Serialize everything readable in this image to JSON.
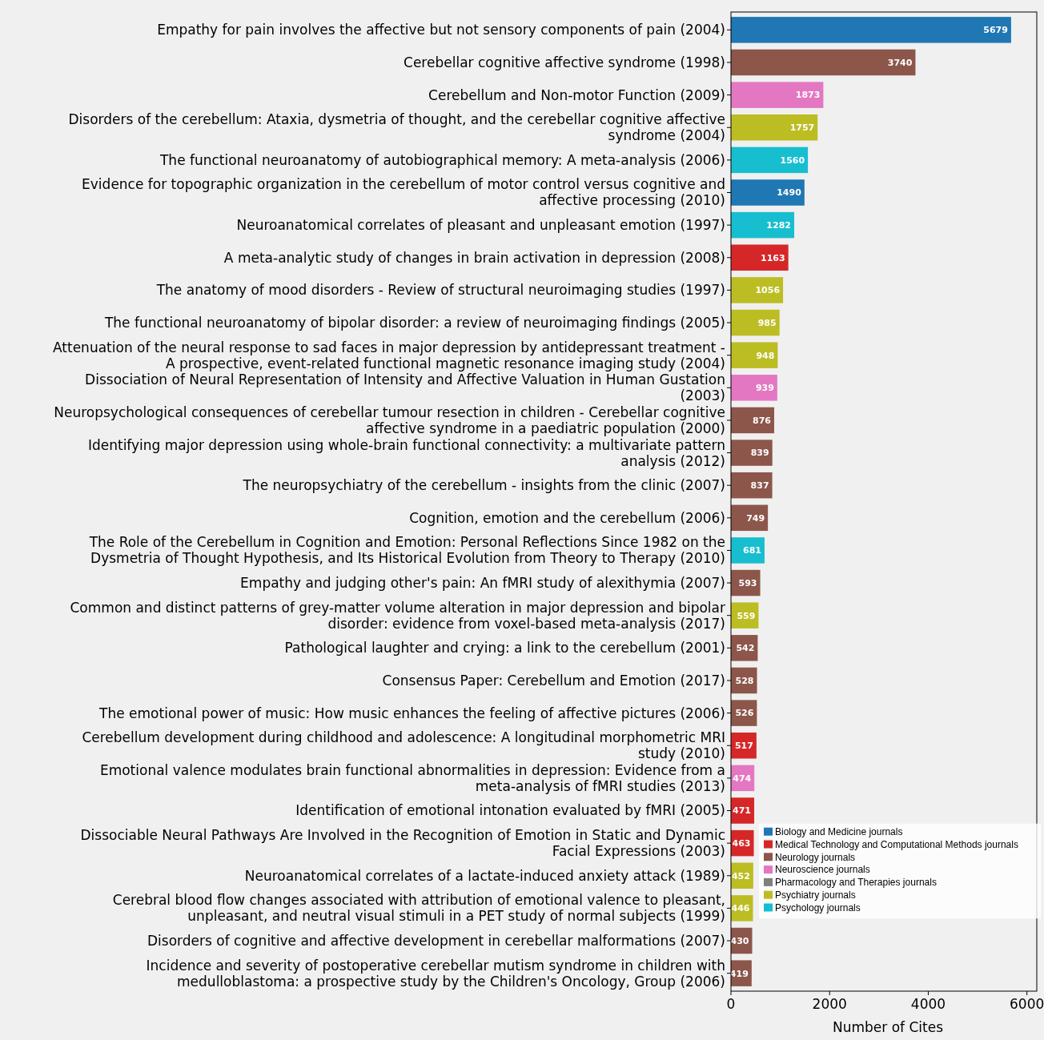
{
  "chart_data": {
    "type": "bar",
    "orientation": "horizontal",
    "xlabel": "Number of Cites",
    "xlim": [
      0,
      6200
    ],
    "xticks": [
      0,
      2000,
      4000,
      6000
    ],
    "data_labels": true,
    "legend": "bottom right",
    "categories": [
      "Empathy for pain involves the affective but not sensory components of pain (2004)",
      "Cerebellar cognitive affective syndrome (1998)",
      "Cerebellum and Non-motor Function (2009)",
      "Disorders of the cerebellum: Ataxia, dysmetria of thought, and the cerebellar cognitive affective syndrome (2004)",
      "The functional neuroanatomy of autobiographical memory: A meta-analysis (2006)",
      "Evidence for topographic organization in the cerebellum of motor control versus cognitive and affective processing (2010)",
      "Neuroanatomical correlates of pleasant and unpleasant emotion (1997)",
      "A meta-analytic study of changes in brain activation in depression (2008)",
      "The anatomy of mood disorders - Review of structural neuroimaging studies (1997)",
      "The functional neuroanatomy of bipolar disorder: a review of neuroimaging findings (2005)",
      "Attenuation of the neural response to sad faces in major depression by antidepressant treatment - A prospective, event-related functional magnetic resonance imaging study (2004)",
      "Dissociation of Neural Representation of Intensity and Affective Valuation in Human Gustation (2003)",
      "Neuropsychological consequences of cerebellar tumour resection in children - Cerebellar cognitive affective syndrome in a paediatric population (2000)",
      "Identifying major depression using whole-brain functional connectivity: a multivariate pattern analysis (2012)",
      "The neuropsychiatry of the cerebellum - insights from the clinic (2007)",
      "Cognition, emotion and the cerebellum (2006)",
      "The Role of the Cerebellum in Cognition and Emotion: Personal Reflections Since 1982 on the Dysmetria of Thought Hypothesis, and Its Historical Evolution from Theory to Therapy (2010)",
      "Empathy and judging other's pain: An fMRI study of alexithymia (2007)",
      "Common and distinct patterns of grey-matter volume alteration in major depression and bipolar disorder: evidence from voxel-based meta-analysis (2017)",
      "Pathological laughter and crying: a link to the cerebellum (2001)",
      "Consensus Paper: Cerebellum and Emotion (2017)",
      "The emotional power of music: How music enhances the feeling of affective pictures (2006)",
      "Cerebellum development during childhood and adolescence: A longitudinal morphometric MRI study (2010)",
      "Emotional valence modulates brain functional abnormalities in depression: Evidence from a meta-analysis of fMRI studies (2013)",
      "Identification of emotional intonation evaluated by fMRI (2005)",
      "Dissociable Neural Pathways Are Involved in the Recognition of Emotion in Static and Dynamic Facial Expressions (2003)",
      "Neuroanatomical correlates of a lactate-induced anxiety attack (1989)",
      "Cerebral blood flow changes associated with attribution of emotional valence to pleasant, unpleasant, and neutral visual stimuli in a PET study of normal subjects (1999)",
      "Disorders of cognitive and affective development in cerebellar malformations (2007)",
      "Incidence and severity of postoperative cerebellar mutism syndrome in children with medulloblastoma: a prospective study by the Children's Oncology, Group (2006)"
    ],
    "series": [
      {
        "name": "Biology and Medicine journals",
        "color": "#1f77b4",
        "values": [
          5679,
          null,
          null,
          null,
          null,
          1490,
          null,
          null,
          null,
          null,
          null,
          null,
          null,
          null,
          null,
          null,
          null,
          null,
          null,
          null,
          null,
          null,
          null,
          null,
          null,
          null,
          null,
          null,
          null,
          null
        ]
      },
      {
        "name": "Medical Technology and Computational Methods journals",
        "color": "#d62728",
        "values": [
          null,
          null,
          null,
          null,
          null,
          null,
          null,
          1163,
          null,
          null,
          null,
          null,
          null,
          null,
          null,
          null,
          null,
          null,
          null,
          null,
          null,
          null,
          517,
          null,
          471,
          463,
          null,
          null,
          null,
          null
        ]
      },
      {
        "name": "Neurology journals",
        "color": "#8c564b",
        "values": [
          null,
          3740,
          null,
          null,
          null,
          null,
          null,
          null,
          null,
          null,
          null,
          null,
          876,
          839,
          837,
          749,
          null,
          593,
          null,
          542,
          528,
          526,
          null,
          null,
          null,
          null,
          null,
          null,
          430,
          419
        ]
      },
      {
        "name": "Neuroscience journals",
        "color": "#e377c2",
        "values": [
          null,
          null,
          1873,
          null,
          null,
          null,
          null,
          null,
          null,
          null,
          null,
          939,
          null,
          null,
          null,
          null,
          null,
          null,
          null,
          null,
          null,
          null,
          null,
          474,
          null,
          null,
          null,
          null,
          null,
          null
        ]
      },
      {
        "name": "Pharmacology and Therapies journals",
        "color": "#7f7f7f",
        "values": [
          null,
          null,
          null,
          null,
          null,
          null,
          null,
          null,
          null,
          null,
          null,
          null,
          null,
          null,
          null,
          null,
          null,
          null,
          null,
          null,
          null,
          null,
          null,
          null,
          null,
          null,
          null,
          null,
          null,
          null
        ]
      },
      {
        "name": "Psychiatry journals",
        "color": "#bcbd22",
        "values": [
          null,
          null,
          null,
          1757,
          null,
          null,
          null,
          null,
          1056,
          985,
          948,
          null,
          null,
          null,
          null,
          null,
          null,
          null,
          559,
          null,
          null,
          null,
          null,
          null,
          null,
          null,
          452,
          446,
          null,
          null
        ]
      },
      {
        "name": "Psychology journals",
        "color": "#17becf",
        "values": [
          null,
          null,
          null,
          null,
          1560,
          null,
          1282,
          null,
          null,
          null,
          null,
          null,
          null,
          null,
          null,
          null,
          681,
          null,
          null,
          null,
          null,
          null,
          null,
          null,
          null,
          null,
          null,
          null,
          null,
          null
        ]
      }
    ]
  }
}
